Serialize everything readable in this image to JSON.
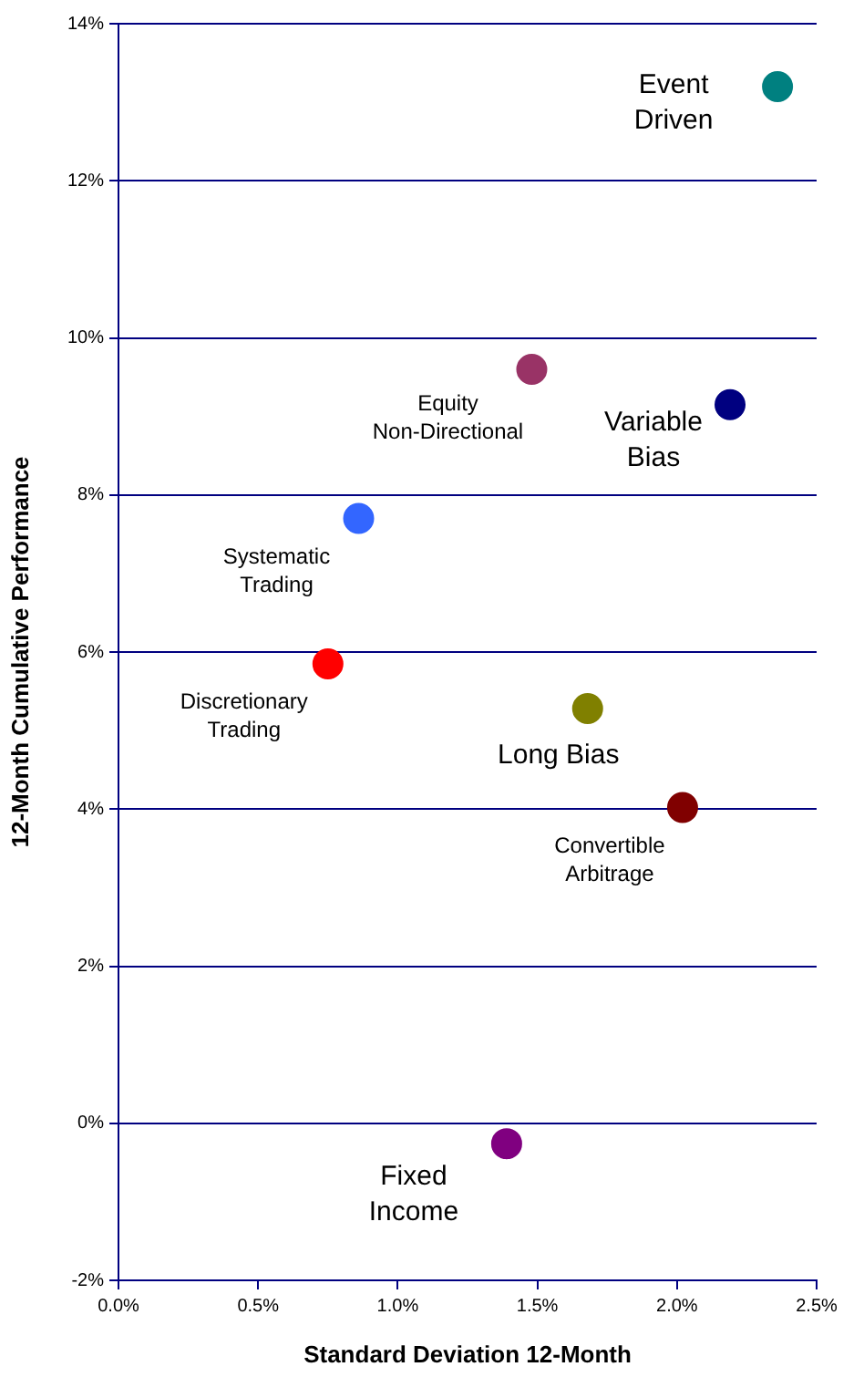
{
  "chart_data": {
    "type": "scatter",
    "xlabel": "Standard Deviation 12-Month",
    "ylabel": "12-Month Cumulative Performance",
    "xlim": [
      0,
      2.5
    ],
    "ylim": [
      -2,
      14
    ],
    "xticks": [
      {
        "value": 0,
        "label": "0.0%"
      },
      {
        "value": 0.5,
        "label": "0.5%"
      },
      {
        "value": 1,
        "label": "1.0%"
      },
      {
        "value": 1.5,
        "label": "1.5%"
      },
      {
        "value": 2,
        "label": "2.0%"
      },
      {
        "value": 2.5,
        "label": "2.5%"
      }
    ],
    "yticks": [
      {
        "value": -2,
        "label": "-2%"
      },
      {
        "value": 0,
        "label": "0%"
      },
      {
        "value": 2,
        "label": "2%"
      },
      {
        "value": 4,
        "label": "4%"
      },
      {
        "value": 6,
        "label": "6%"
      },
      {
        "value": 8,
        "label": "8%"
      },
      {
        "value": 10,
        "label": "10%"
      },
      {
        "value": 12,
        "label": "12%"
      },
      {
        "value": 14,
        "label": "14%"
      }
    ],
    "grid": "y",
    "legend": false,
    "marker": "circle",
    "series": [
      {
        "name": "Event Driven",
        "color": "#008080",
        "x": [
          2.36
        ],
        "values": [
          13.2
        ]
      },
      {
        "name": "Equity Non-Directional",
        "color": "#993366",
        "x": [
          1.48
        ],
        "values": [
          9.6
        ]
      },
      {
        "name": "Variable Bias",
        "color": "#000080",
        "x": [
          2.19
        ],
        "values": [
          9.15
        ]
      },
      {
        "name": "Systematic Trading",
        "color": "#3366ff",
        "x": [
          0.86
        ],
        "values": [
          7.7
        ]
      },
      {
        "name": "Discretionary Trading",
        "color": "#ff0000",
        "x": [
          0.75
        ],
        "values": [
          5.85
        ]
      },
      {
        "name": "Long Bias",
        "color": "#808000",
        "x": [
          1.68
        ],
        "values": [
          5.28
        ]
      },
      {
        "name": "Convertible Arbitrage",
        "color": "#800000",
        "x": [
          2.02
        ],
        "values": [
          4.02
        ]
      },
      {
        "name": "Fixed Income",
        "color": "#800080",
        "x": [
          1.39
        ],
        "values": [
          -0.26
        ]
      }
    ]
  }
}
